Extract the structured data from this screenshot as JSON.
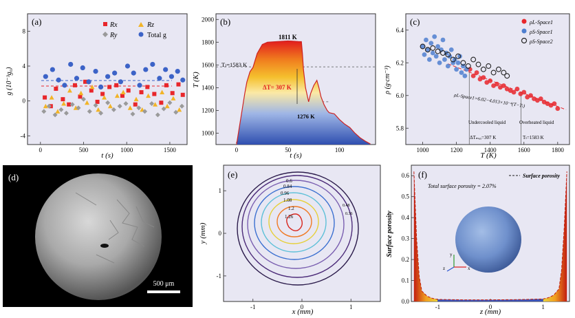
{
  "figure": {
    "panel_a": {
      "letter": "(a)",
      "ylabel": "g (10⁻³g₀)",
      "xlabel": "t (s)",
      "xticks": [
        "0",
        "500",
        "1000",
        "1500"
      ],
      "yticks": [
        "-4",
        "0",
        "4",
        "8"
      ],
      "legend": [
        "Rx",
        "Rz",
        "Ry",
        "Total g"
      ]
    },
    "panel_b": {
      "letter": "(b)",
      "ylabel": "T (K)",
      "xlabel": "t (s)",
      "xticks": [
        "0",
        "50",
        "100"
      ],
      "yticks": [
        "1000",
        "1200",
        "1400",
        "1600",
        "1800",
        "2000"
      ],
      "ann_peak": "1811 K",
      "ann_tl": "Tₗ=1583 K",
      "ann_dt": "ΔT= 307 K",
      "ann_min": "1276 K"
    },
    "panel_c": {
      "letter": "(c)",
      "ylabel": "ρ (g·cm⁻³)",
      "xlabel": "T (K)",
      "xticks": [
        "1000",
        "1200",
        "1400",
        "1600",
        "1800"
      ],
      "yticks": [
        "5.8",
        "6.0",
        "6.2",
        "6.4"
      ],
      "legend": [
        "ρL-Space1",
        "ρS-Space1",
        "ρS-Space2"
      ],
      "fit_label": "ρL-Space1=6.02−4.013×10⁻⁴(T−Tₗ)",
      "undercooled": "Undercooled liquid",
      "overheated": "Overheated liquid",
      "dt_label": "ΔTₘₐₓ=307 K",
      "tl_label": "Tₗ=1583 K"
    },
    "panel_d": {
      "letter": "(d)",
      "scalebar": "500 μm"
    },
    "panel_e": {
      "letter": "(e)",
      "ylabel": "y (mm)",
      "xlabel": "x (mm)",
      "xticks": [
        "-1",
        "0",
        "1"
      ],
      "yticks": [
        "-1",
        "0",
        "1"
      ],
      "contours": [
        "1.26",
        "1.2",
        "1.08",
        "0.96",
        "0.84",
        "0.6",
        "0.48",
        "0.36"
      ]
    },
    "panel_f": {
      "letter": "(f)",
      "ylabel": "Surface porosity",
      "xlabel": "z (mm)",
      "xticks": [
        "-1",
        "0",
        "1"
      ],
      "yticks": [
        "0.0",
        "0.1",
        "0.2",
        "0.3",
        "0.4",
        "0.5",
        "0.6"
      ],
      "legend": "Surface porosity",
      "total": "Total surface porosity = 2.07%",
      "axis_labels": [
        "y",
        "z",
        "x"
      ]
    }
  },
  "colors": {
    "panel_bg": "#e8e7f3",
    "rx": "#e8262b",
    "rz": "#f2b427",
    "ry": "#9a9a9a",
    "total": "#3c63c7",
    "liquid": "#e8262b",
    "solid1": "#4f7fcf",
    "solid2": "#222222"
  },
  "chart_data": [
    {
      "panel": "a",
      "type": "scatter",
      "xlabel": "t (s)",
      "ylabel": "g (10^-3 g0)",
      "xlim": [
        -150,
        1700
      ],
      "ylim": [
        -5,
        10
      ],
      "series": [
        {
          "name": "Rx",
          "color": "#e8262b",
          "x": [
            50,
            120,
            180,
            260,
            330,
            400,
            460,
            520,
            590,
            660,
            720,
            800,
            880,
            950,
            1020,
            1100,
            1170,
            1240,
            1320,
            1400,
            1460,
            1530,
            1600,
            1650
          ],
          "y": [
            0.4,
            -0.6,
            1.4,
            0.2,
            -0.4,
            1.8,
            0.5,
            2.2,
            1.2,
            -0.1,
            0.8,
            1.6,
            1.8,
            0.6,
            1.2,
            -0.4,
            1.0,
            1.6,
            0.8,
            -0.2,
            1.8,
            0.9,
            1.9,
            0.7
          ]
        },
        {
          "name": "Rz",
          "color": "#f2b427",
          "x": [
            60,
            130,
            200,
            270,
            340,
            410,
            470,
            540,
            600,
            670,
            740,
            810,
            890,
            960,
            1040,
            1110,
            1180,
            1250,
            1330,
            1410,
            1470,
            1540,
            1610
          ],
          "y": [
            -0.6,
            0.4,
            -1.2,
            -0.3,
            1.2,
            -0.8,
            0.9,
            -0.2,
            1.6,
            -1.0,
            0.4,
            -0.6,
            0.6,
            1.0,
            -0.8,
            0.2,
            -1.0,
            0.6,
            -0.4,
            1.0,
            -0.6,
            0.3,
            -1.0
          ]
        },
        {
          "name": "Ry",
          "color": "#9a9a9a",
          "x": [
            40,
            100,
            170,
            240,
            300,
            370,
            440,
            500,
            570,
            640,
            700,
            780,
            850,
            920,
            990,
            1070,
            1140,
            1210,
            1290,
            1360,
            1430,
            1500,
            1570,
            1640
          ],
          "y": [
            -1.2,
            -0.6,
            -1.6,
            -1.0,
            -1.4,
            -0.4,
            -0.8,
            0.2,
            -1.2,
            -0.5,
            -1.4,
            -0.2,
            -1.0,
            -0.6,
            -0.3,
            -1.5,
            -0.8,
            -1.2,
            -0.3,
            -1.6,
            -0.9,
            -0.2,
            -1.3,
            -0.6
          ]
        },
        {
          "name": "Total g",
          "color": "#3c63c7",
          "x": [
            60,
            140,
            210,
            280,
            350,
            420,
            490,
            560,
            640,
            700,
            780,
            860,
            930,
            1010,
            1080,
            1150,
            1220,
            1300,
            1380,
            1450,
            1520,
            1590,
            1650
          ],
          "y": [
            2.8,
            3.6,
            2.4,
            1.8,
            4.2,
            2.6,
            3.8,
            2.2,
            3.4,
            1.6,
            2.8,
            3.2,
            2.2,
            4.0,
            3.2,
            1.8,
            3.6,
            4.2,
            2.6,
            3.6,
            2.8,
            3.4,
            2.4
          ]
        }
      ],
      "reference_lines": [
        2.9,
        2.3
      ]
    },
    {
      "panel": "b",
      "type": "line",
      "xlabel": "t (s)",
      "ylabel": "T (K)",
      "xlim": [
        -20,
        135
      ],
      "ylim": [
        900,
        2050
      ],
      "x": [
        0,
        5,
        8,
        10,
        13,
        16,
        20,
        25,
        30,
        40,
        50,
        55,
        60,
        63,
        64,
        65,
        67,
        70,
        72,
        75,
        78,
        80,
        82,
        85,
        88,
        90,
        95,
        100,
        105,
        110,
        115,
        120,
        125,
        130
      ],
      "y": [
        900,
        1180,
        1350,
        1450,
        1540,
        1580,
        1700,
        1780,
        1800,
        1806,
        1811,
        1809,
        1806,
        1805,
        1700,
        1560,
        1400,
        1276,
        1350,
        1420,
        1465,
        1400,
        1320,
        1250,
        1200,
        1180,
        1170,
        1120,
        1080,
        1050,
        1000,
        960,
        930,
        905
      ],
      "reference_lines": [
        1583,
        1276
      ],
      "annotations": [
        "1811 K",
        "T_L=1583 K",
        "ΔT= 307 K",
        "1276 K"
      ]
    },
    {
      "panel": "c",
      "type": "scatter",
      "xlabel": "T (K)",
      "ylabel": "ρ (g·cm^-3)",
      "xlim": [
        900,
        1870
      ],
      "ylim": [
        5.7,
        6.5
      ],
      "series": [
        {
          "name": "ρL-Space1",
          "color": "#e8262b",
          "x": [
            1280,
            1300,
            1320,
            1340,
            1360,
            1380,
            1400,
            1420,
            1440,
            1460,
            1480,
            1500,
            1520,
            1540,
            1560,
            1580,
            1600,
            1620,
            1640,
            1660,
            1680,
            1700,
            1720,
            1740,
            1760,
            1780,
            1800
          ],
          "y": [
            6.16,
            6.12,
            6.14,
            6.1,
            6.11,
            6.08,
            6.09,
            6.06,
            6.07,
            6.05,
            6.06,
            6.04,
            6.03,
            6.02,
            6.04,
            6.01,
            6.02,
            5.99,
            6.0,
            5.98,
            5.97,
            5.98,
            5.96,
            5.95,
            5.94,
            5.95,
            5.92
          ]
        },
        {
          "name": "ρS-Space1",
          "color": "#4f7fcf",
          "x": [
            1000,
            1010,
            1020,
            1030,
            1040,
            1050,
            1060,
            1070,
            1080,
            1090,
            1100,
            1110,
            1120,
            1130,
            1140,
            1150,
            1160,
            1170,
            1180,
            1190,
            1200,
            1210,
            1220,
            1230,
            1240,
            1250,
            1260
          ],
          "y": [
            6.3,
            6.25,
            6.34,
            6.28,
            6.22,
            6.32,
            6.26,
            6.36,
            6.24,
            6.3,
            6.2,
            6.28,
            6.34,
            6.22,
            6.26,
            6.18,
            6.24,
            6.28,
            6.2,
            6.22,
            6.16,
            6.2,
            6.24,
            6.14,
            6.18,
            6.12,
            6.16
          ]
        },
        {
          "name": "ρS-Space2",
          "color": "#222222",
          "x": [
            1000,
            1030,
            1060,
            1090,
            1120,
            1150,
            1180,
            1210,
            1240,
            1270,
            1300,
            1330,
            1360,
            1390,
            1420,
            1450,
            1480,
            1500
          ],
          "y": [
            6.3,
            6.28,
            6.29,
            6.27,
            6.26,
            6.25,
            6.22,
            6.24,
            6.2,
            6.18,
            6.22,
            6.19,
            6.16,
            6.18,
            6.14,
            6.16,
            6.14,
            6.12
          ]
        }
      ],
      "fit": {
        "T_L": 1583,
        "rho_L": 6.02,
        "slope": -0.0004013
      }
    },
    {
      "panel": "f",
      "type": "area",
      "xlabel": "z (mm)",
      "ylabel": "Surface porosity",
      "xlim": [
        -1.5,
        1.5
      ],
      "ylim": [
        0,
        0.65
      ],
      "x": [
        -1.45,
        -1.4,
        -1.35,
        -1.3,
        -1.2,
        -1.1,
        -1.0,
        -0.5,
        0,
        0.5,
        1.0,
        1.1,
        1.2,
        1.3,
        1.35,
        1.4,
        1.45
      ],
      "y": [
        0.62,
        0.3,
        0.12,
        0.05,
        0.025,
        0.015,
        0.01,
        0.008,
        0.008,
        0.009,
        0.012,
        0.018,
        0.03,
        0.06,
        0.15,
        0.35,
        0.62
      ]
    }
  ]
}
